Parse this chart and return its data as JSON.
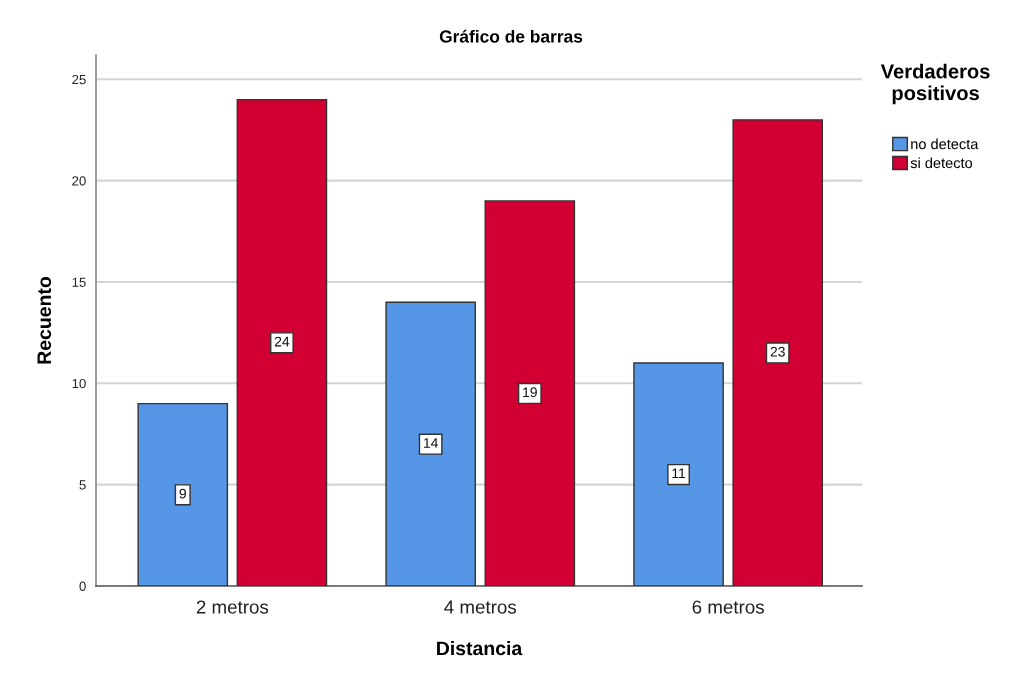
{
  "chart_data": {
    "type": "bar",
    "title": "Gráfico de barras",
    "xlabel": "Distancia",
    "ylabel": "Recuento",
    "legend_title": "Verdaderos\npositivos",
    "categories": [
      "2 metros",
      "4 metros",
      "6 metros"
    ],
    "series": [
      {
        "name": "no detecta",
        "color": "#5596e6",
        "values": [
          9,
          14,
          11
        ]
      },
      {
        "name": "si detecto",
        "color": "#d20032",
        "values": [
          24,
          19,
          23
        ]
      }
    ],
    "ylim": [
      0,
      26.2
    ],
    "yticks": [
      0,
      5,
      10,
      15,
      20,
      25
    ],
    "grid": "y",
    "legend": "top right",
    "data_labels": true
  }
}
